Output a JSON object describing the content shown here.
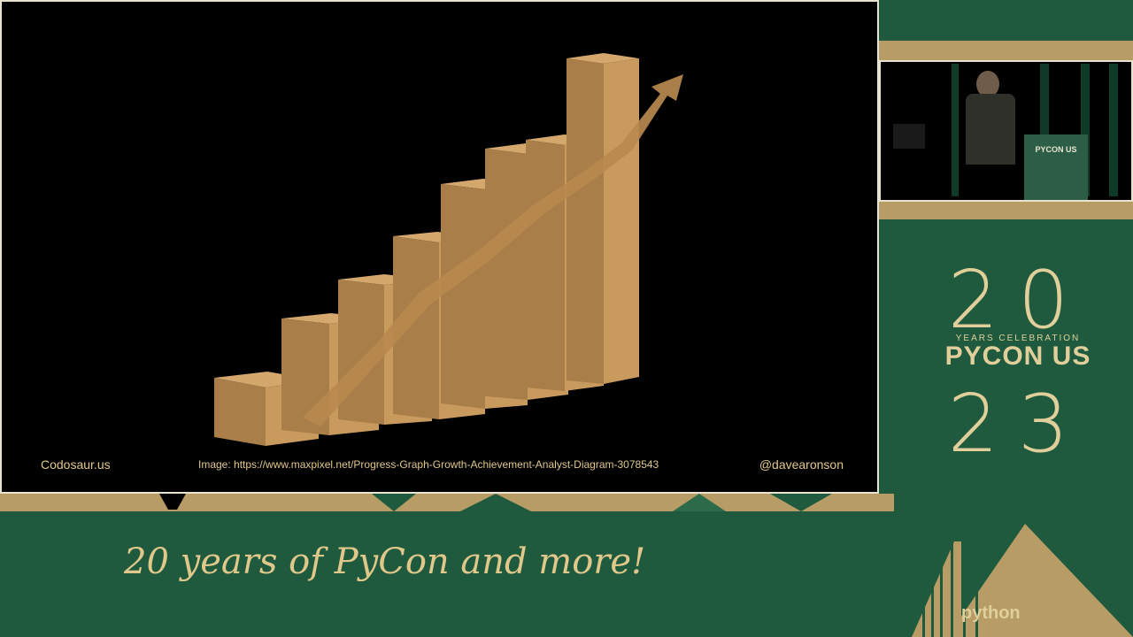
{
  "slide": {
    "footer_left": "Codosaur.us",
    "footer_center": "Image: https://www.maxpixel.net/Progress-Graph-Growth-Achievement-Analyst-Diagram-3078543",
    "footer_right": "@davearonson"
  },
  "camera": {
    "podium_label": "PYCON US"
  },
  "branding": {
    "year_top": "20",
    "subtitle": "YEARS CELEBRATION",
    "name": "PYCON US",
    "year_bottom": "23",
    "logo": "python"
  },
  "tagline": "20 years of PyCon and more!",
  "colors": {
    "background_green": "#1f5a3f",
    "accent_gold": "#e0c88a",
    "bar_tan": "#c99a5e"
  }
}
